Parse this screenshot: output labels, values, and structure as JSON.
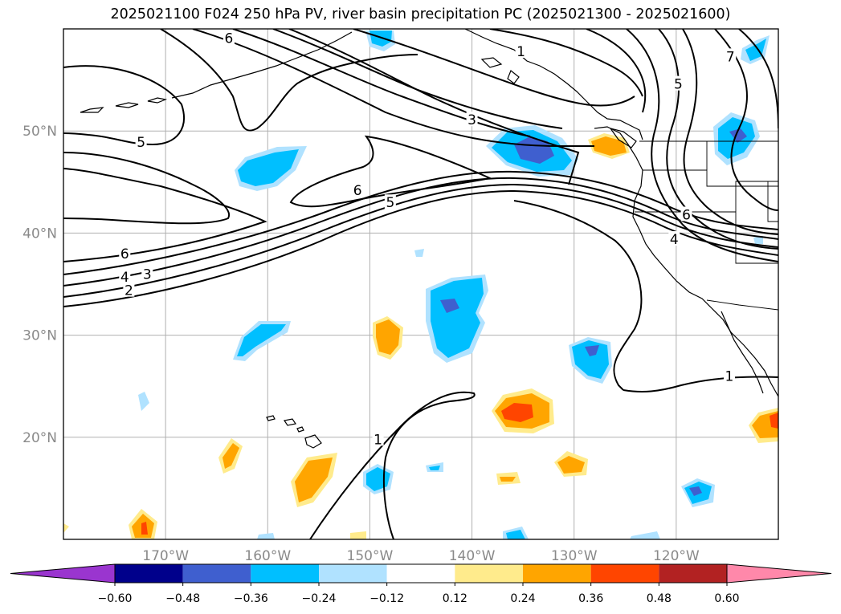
{
  "title": "2025021100 F024 250 hPa PV, river basin precipitation PC (2025021300 - 2025021600)",
  "map": {
    "projection": "lat-lon",
    "lon_range": [
      -180,
      -110
    ],
    "lat_range": [
      10,
      60
    ],
    "lat_ticks": [
      {
        "value": 50,
        "label": "50°N"
      },
      {
        "value": 40,
        "label": "40°N"
      },
      {
        "value": 30,
        "label": "30°N"
      },
      {
        "value": 20,
        "label": "20°N"
      }
    ],
    "lon_ticks": [
      {
        "value": -170,
        "label": "170°W"
      },
      {
        "value": -160,
        "label": "160°W"
      },
      {
        "value": -150,
        "label": "150°W"
      },
      {
        "value": -140,
        "label": "140°W"
      },
      {
        "value": -130,
        "label": "130°W"
      },
      {
        "value": -120,
        "label": "120°W"
      }
    ],
    "gridlines": true,
    "contour_labels": [
      {
        "text": "6",
        "lon": -163.8,
        "lat": 59.1
      },
      {
        "text": "5",
        "lon": -172.4,
        "lat": 48.9
      },
      {
        "text": "3",
        "lon": -140.0,
        "lat": 51.1
      },
      {
        "text": "6",
        "lon": -151.2,
        "lat": 44.2
      },
      {
        "text": "5",
        "lon": -148.0,
        "lat": 43.0
      },
      {
        "text": "6",
        "lon": -174.0,
        "lat": 38.0
      },
      {
        "text": "4",
        "lon": -174.0,
        "lat": 35.7
      },
      {
        "text": "3",
        "lon": -171.8,
        "lat": 36.0
      },
      {
        "text": "2",
        "lon": -173.6,
        "lat": 34.4
      },
      {
        "text": "1",
        "lon": -149.2,
        "lat": 19.8
      },
      {
        "text": "1",
        "lon": -114.8,
        "lat": 26.0
      },
      {
        "text": "5",
        "lon": -119.8,
        "lat": 54.6
      },
      {
        "text": "1",
        "lon": -135.2,
        "lat": 57.8
      },
      {
        "text": "7",
        "lon": -114.7,
        "lat": 57.3
      },
      {
        "text": "6",
        "lon": -119.0,
        "lat": 41.8
      },
      {
        "text": "4",
        "lon": -120.2,
        "lat": 39.4
      }
    ]
  },
  "colorbar": {
    "levels": [
      -0.6,
      -0.48,
      -0.36,
      -0.24,
      -0.12,
      0.12,
      0.24,
      0.36,
      0.48,
      0.6
    ],
    "labels": [
      "−0.60",
      "−0.48",
      "−0.36",
      "−0.24",
      "−0.12",
      "0.12",
      "0.24",
      "0.36",
      "0.48",
      "0.60"
    ],
    "colors": [
      "#9a35cf",
      "#00008b",
      "#3f5fcf",
      "#00bfff",
      "#b0e2ff",
      "#ffffff",
      "#ffeb8c",
      "#ffa500",
      "#ff4500",
      "#b22222",
      "#ff88aa"
    ],
    "extend": "both"
  }
}
